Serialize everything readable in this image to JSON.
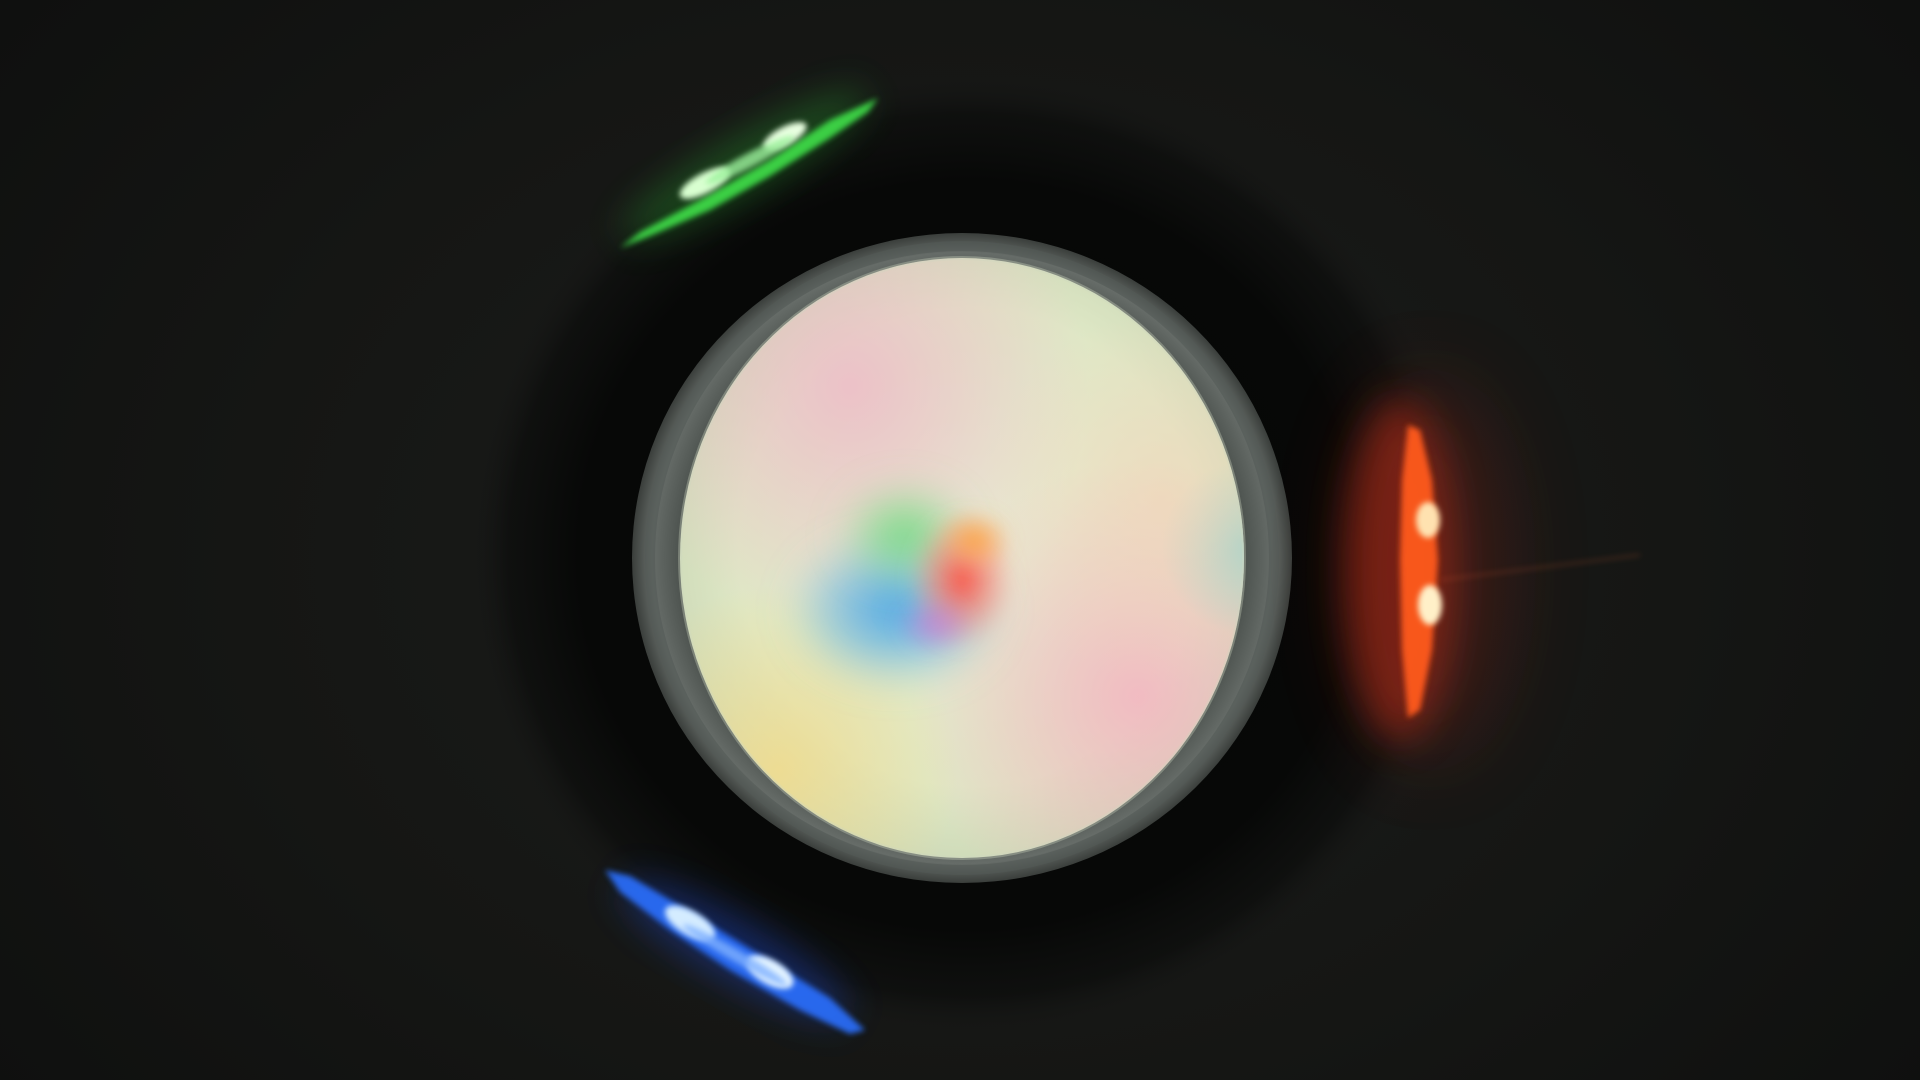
{
  "scene": {
    "background_color": "#161716",
    "shadow_ring_color": "#070807",
    "diffuser_rim_color": "#5e6460",
    "center_mix_colors": {
      "blue": "#4aa6e8",
      "green": "#7ed38a",
      "red": "#ff5a4a",
      "pink": "#f2b0bf",
      "cream": "#e6eccf",
      "yellow": "#f0d890"
    },
    "leds": [
      {
        "name": "green",
        "color": "#3fe04a",
        "glow": "#2aa831",
        "core": "#d8ffd0"
      },
      {
        "name": "red",
        "color": "#ff5a1e",
        "glow": "#c2301a",
        "core": "#ffe2b0"
      },
      {
        "name": "blue",
        "color": "#2a70ff",
        "glow": "#1d48d8",
        "core": "#d4ecff"
      }
    ]
  }
}
